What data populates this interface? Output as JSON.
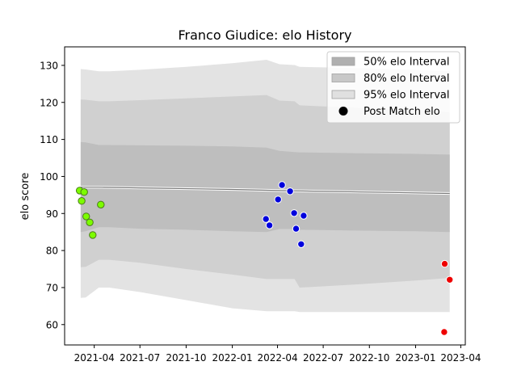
{
  "chart_data": {
    "type": "scatter",
    "title": "Franco Giudice: elo History",
    "xlabel": "",
    "ylabel": "elo score",
    "xlim": [
      "2021-02-01",
      "2023-04-10"
    ],
    "ylim": [
      54.5,
      135
    ],
    "grid": false,
    "x_ticks": [
      "2021-04",
      "2021-07",
      "2021-10",
      "2022-01",
      "2022-04",
      "2022-07",
      "2022-10",
      "2023-01",
      "2023-04"
    ],
    "y_ticks": [
      60,
      70,
      80,
      90,
      100,
      110,
      120,
      130
    ],
    "legend": {
      "placement": "top-right",
      "entries": [
        {
          "label": "50% elo Interval",
          "kind": "patch",
          "color": "#b0b0b0"
        },
        {
          "label": "80% elo Interval",
          "kind": "patch",
          "color": "#c8c8c8"
        },
        {
          "label": "95% elo Interval",
          "kind": "patch",
          "color": "#e0e0e0"
        },
        {
          "label": "Post Match elo",
          "kind": "marker",
          "color": "#000000"
        }
      ]
    },
    "intervals": [
      {
        "name": "95% elo Interval",
        "color": "#e3e3e3",
        "x": [
          "2021-03-05",
          "2021-03-15",
          "2021-04-10",
          "2021-05-01",
          "2021-07-01",
          "2021-10-01",
          "2022-01-01",
          "2022-03-10",
          "2022-04-05",
          "2022-05-05",
          "2022-05-15",
          "2022-09-01",
          "2023-01-01",
          "2023-03-10"
        ],
        "upper": [
          129,
          128.9,
          128.4,
          128.4,
          128.8,
          129.6,
          130.6,
          131.5,
          130.3,
          130.1,
          129.6,
          129.3,
          128.8,
          128.4
        ],
        "lower": [
          67.2,
          67.3,
          70,
          70,
          68.8,
          66.6,
          64.4,
          63.6,
          63.6,
          63.6,
          63.4,
          63.4,
          63.4,
          63.4
        ]
      },
      {
        "name": "80% elo Interval",
        "color": "#d0d0d0",
        "x": [
          "2021-03-05",
          "2021-03-15",
          "2021-04-10",
          "2021-05-01",
          "2021-07-01",
          "2021-10-01",
          "2022-01-01",
          "2022-03-10",
          "2022-04-05",
          "2022-05-05",
          "2022-05-15",
          "2022-09-01",
          "2023-01-01",
          "2023-03-10"
        ],
        "upper": [
          120.8,
          120.7,
          120.3,
          120.3,
          120.6,
          121.1,
          121.6,
          122,
          120.5,
          120.3,
          119.2,
          118.6,
          117.9,
          117.4
        ],
        "lower": [
          75.5,
          75.6,
          77.5,
          77.5,
          76.7,
          75,
          73.5,
          72.3,
          72.3,
          72.3,
          70,
          70.8,
          71.9,
          72.6
        ]
      },
      {
        "name": "50% elo Interval",
        "color": "#bebebe",
        "x": [
          "2021-03-05",
          "2021-03-15",
          "2021-04-10",
          "2021-05-01",
          "2021-07-01",
          "2021-10-01",
          "2022-01-01",
          "2022-03-10",
          "2022-04-05",
          "2022-05-05",
          "2022-05-15",
          "2022-09-01",
          "2023-01-01",
          "2023-03-10"
        ],
        "upper": [
          109.3,
          109.2,
          108.5,
          108.5,
          108.4,
          108.3,
          108.1,
          107.8,
          106.9,
          106.6,
          106.5,
          106.3,
          106.1,
          105.9
        ],
        "lower": [
          85,
          85.2,
          86.3,
          86.3,
          85.9,
          85.6,
          85.2,
          85,
          85.8,
          85.8,
          85.6,
          85.4,
          85.2,
          85
        ]
      }
    ],
    "mean_line": {
      "color": "#7a7a7a",
      "x": [
        "2021-03-05",
        "2021-04-10",
        "2021-07-01",
        "2022-01-01",
        "2022-04-05",
        "2023-03-10"
      ],
      "y": [
        97.1,
        97.1,
        96.9,
        96.5,
        96.2,
        95.4
      ]
    },
    "series": [
      {
        "name": "",
        "color": "#7cfc00",
        "edge": "#4a7a1a",
        "points": [
          {
            "x": "2021-03-03",
            "y": 96.2
          },
          {
            "x": "2021-03-07",
            "y": 93.4
          },
          {
            "x": "2021-03-12",
            "y": 95.8
          },
          {
            "x": "2021-03-16",
            "y": 89.2
          },
          {
            "x": "2021-03-23",
            "y": 87.6
          },
          {
            "x": "2021-03-29",
            "y": 84.2
          },
          {
            "x": "2021-04-14",
            "y": 92.4
          }
        ]
      },
      {
        "name": "",
        "color": "#0000dd",
        "edge": "#ffffff",
        "points": [
          {
            "x": "2022-03-09",
            "y": 88.5
          },
          {
            "x": "2022-03-16",
            "y": 86.8
          },
          {
            "x": "2022-04-02",
            "y": 93.8
          },
          {
            "x": "2022-04-10",
            "y": 97.7
          },
          {
            "x": "2022-04-26",
            "y": 96.0
          },
          {
            "x": "2022-05-04",
            "y": 90.1
          },
          {
            "x": "2022-05-08",
            "y": 85.9
          },
          {
            "x": "2022-05-18",
            "y": 81.7
          },
          {
            "x": "2022-05-23",
            "y": 89.4
          }
        ]
      },
      {
        "name": "",
        "color": "#ee0000",
        "edge": "#ffffff",
        "points": [
          {
            "x": "2023-02-28",
            "y": 76.4
          },
          {
            "x": "2023-02-27",
            "y": 58.0
          },
          {
            "x": "2023-03-10",
            "y": 72.1
          }
        ]
      }
    ]
  }
}
